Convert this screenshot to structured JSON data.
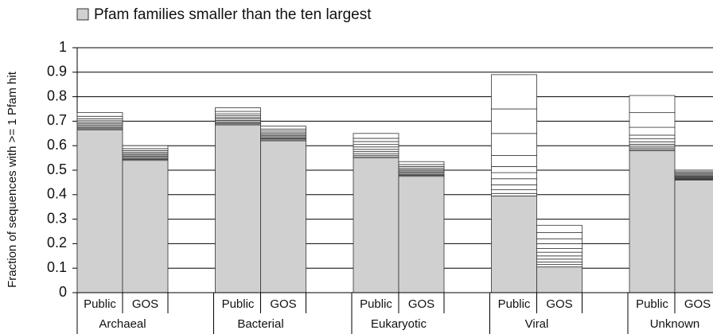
{
  "chart_data": {
    "type": "stacked-bar",
    "legend_text": "Pfam families smaller than the ten largest",
    "y_label": "Fraction of sequences with >= 1 Pfam hit",
    "groups": [
      "Archaeal",
      "Bacterial",
      "Eukaryotic",
      "Viral",
      "Unknown"
    ],
    "categories": [
      "Public",
      "GOS",
      "Public",
      "GOS",
      "Public",
      "GOS",
      "Public",
      "GOS",
      "Public",
      "GOS"
    ],
    "ylim": [
      0,
      1
    ],
    "yticks": [
      0,
      0.1,
      0.2,
      0.3,
      0.4,
      0.5,
      0.6,
      0.7,
      0.8,
      0.9,
      1
    ],
    "grid": true,
    "series": [
      {
        "color": "#d0d0d0",
        "values": [
          0.665,
          0.54,
          0.685,
          0.62,
          0.55,
          0.475,
          0.395,
          0.105,
          0.58,
          0.46
        ]
      },
      {
        "color": "#ffffff",
        "values": [
          0.004,
          0.004,
          0.004,
          0.004,
          0.005,
          0.004,
          0.01,
          0.01,
          0.005,
          0.003
        ]
      },
      {
        "color": "#ffffff",
        "values": [
          0.004,
          0.004,
          0.004,
          0.004,
          0.006,
          0.004,
          0.015,
          0.01,
          0.006,
          0.003
        ]
      },
      {
        "color": "#ffffff",
        "values": [
          0.005,
          0.004,
          0.005,
          0.004,
          0.007,
          0.004,
          0.02,
          0.012,
          0.007,
          0.003
        ]
      },
      {
        "color": "#ffffff",
        "values": [
          0.005,
          0.005,
          0.005,
          0.005,
          0.008,
          0.005,
          0.025,
          0.013,
          0.008,
          0.003
        ]
      },
      {
        "color": "#ffffff",
        "values": [
          0.006,
          0.005,
          0.006,
          0.005,
          0.009,
          0.005,
          0.025,
          0.015,
          0.01,
          0.004
        ]
      },
      {
        "color": "#ffffff",
        "values": [
          0.006,
          0.005,
          0.006,
          0.005,
          0.01,
          0.005,
          0.025,
          0.015,
          0.012,
          0.004
        ]
      },
      {
        "color": "#ffffff",
        "values": [
          0.007,
          0.006,
          0.007,
          0.006,
          0.01,
          0.006,
          0.045,
          0.02,
          0.015,
          0.004
        ]
      },
      {
        "color": "#ffffff",
        "values": [
          0.008,
          0.007,
          0.008,
          0.007,
          0.012,
          0.007,
          0.09,
          0.02,
          0.032,
          0.005
        ]
      },
      {
        "color": "#ffffff",
        "values": [
          0.01,
          0.008,
          0.01,
          0.008,
          0.013,
          0.008,
          0.1,
          0.025,
          0.06,
          0.005
        ]
      },
      {
        "color": "#ffffff",
        "values": [
          0.015,
          0.012,
          0.015,
          0.012,
          0.02,
          0.012,
          0.14,
          0.03,
          0.07,
          0.006
        ]
      }
    ]
  }
}
